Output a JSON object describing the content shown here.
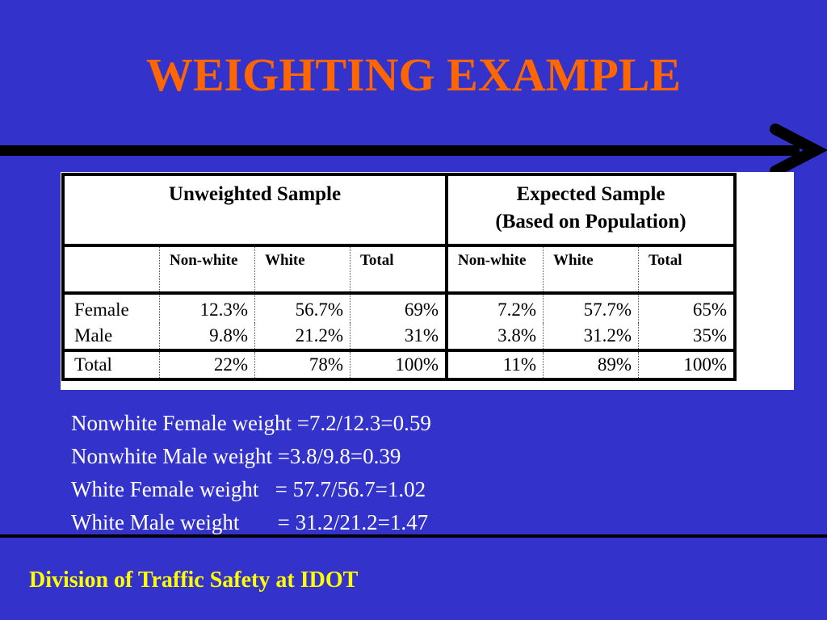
{
  "slide": {
    "title": "WEIGHTING EXAMPLE",
    "footer": "Division of Traffic Safety at IDOT",
    "colors": {
      "background": "#3333cc",
      "title": "#ff6600",
      "footer": "#ffff00",
      "text": "#ffffff"
    }
  },
  "table": {
    "groups": [
      {
        "label_line1": "Unweighted Sample",
        "label_line2": ""
      },
      {
        "label_line1": "Expected Sample",
        "label_line2": "(Based on Population)"
      }
    ],
    "subheaders": [
      "Non-white",
      "White",
      "Total",
      "Non-white",
      "White",
      "Total"
    ],
    "rows": [
      {
        "label": "Female",
        "values": [
          "12.3%",
          "56.7%",
          "69%",
          "7.2%",
          "57.7%",
          "65%"
        ]
      },
      {
        "label": "Male",
        "values": [
          "9.8%",
          "21.2%",
          "31%",
          "3.8%",
          "31.2%",
          "35%"
        ]
      },
      {
        "label": "Total",
        "values": [
          "22%",
          "78%",
          "100%",
          "11%",
          "89%",
          "100%"
        ]
      }
    ]
  },
  "weights": [
    "Nonwhite Female weight =7.2/12.3=0.59",
    "Nonwhite Male weight =3.8/9.8=0.39",
    "White Female weight   = 57.7/56.7=1.02",
    "White Male weight       = 31.2/21.2=1.47"
  ]
}
